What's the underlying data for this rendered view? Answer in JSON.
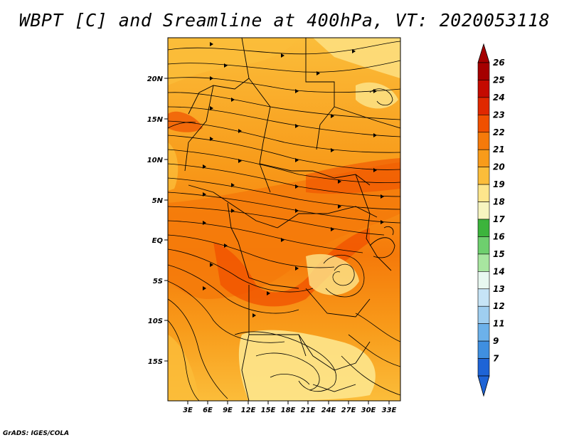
{
  "title": "WBPT [C] and Sreamline at 400hPa, VT: 2020053118",
  "credit": "GrADS: IGES/COLA",
  "map": {
    "lat_labels": [
      "20N",
      "15N",
      "10N",
      "5N",
      "EQ",
      "5S",
      "10S",
      "15S"
    ],
    "lon_labels": [
      "3E",
      "6E",
      "9E",
      "12E",
      "15E",
      "18E",
      "21E",
      "24E",
      "27E",
      "30E",
      "33E"
    ]
  },
  "colorbar": {
    "labels": [
      "26",
      "25",
      "24",
      "23",
      "22",
      "21",
      "20",
      "19",
      "18",
      "17",
      "16",
      "15",
      "14",
      "13",
      "12",
      "11",
      "9",
      "7"
    ],
    "colors": [
      "#a50000",
      "#c40a00",
      "#e02800",
      "#f05000",
      "#f57a0a",
      "#f89b1a",
      "#fbbd3a",
      "#fde68c",
      "#f7f5c0",
      "#3cb43c",
      "#6ecf6e",
      "#a8e6a0",
      "#e8f8f0",
      "#c6e4f6",
      "#9fcef0",
      "#6cb1ea",
      "#3f8fe0",
      "#1e64d6"
    ]
  }
}
